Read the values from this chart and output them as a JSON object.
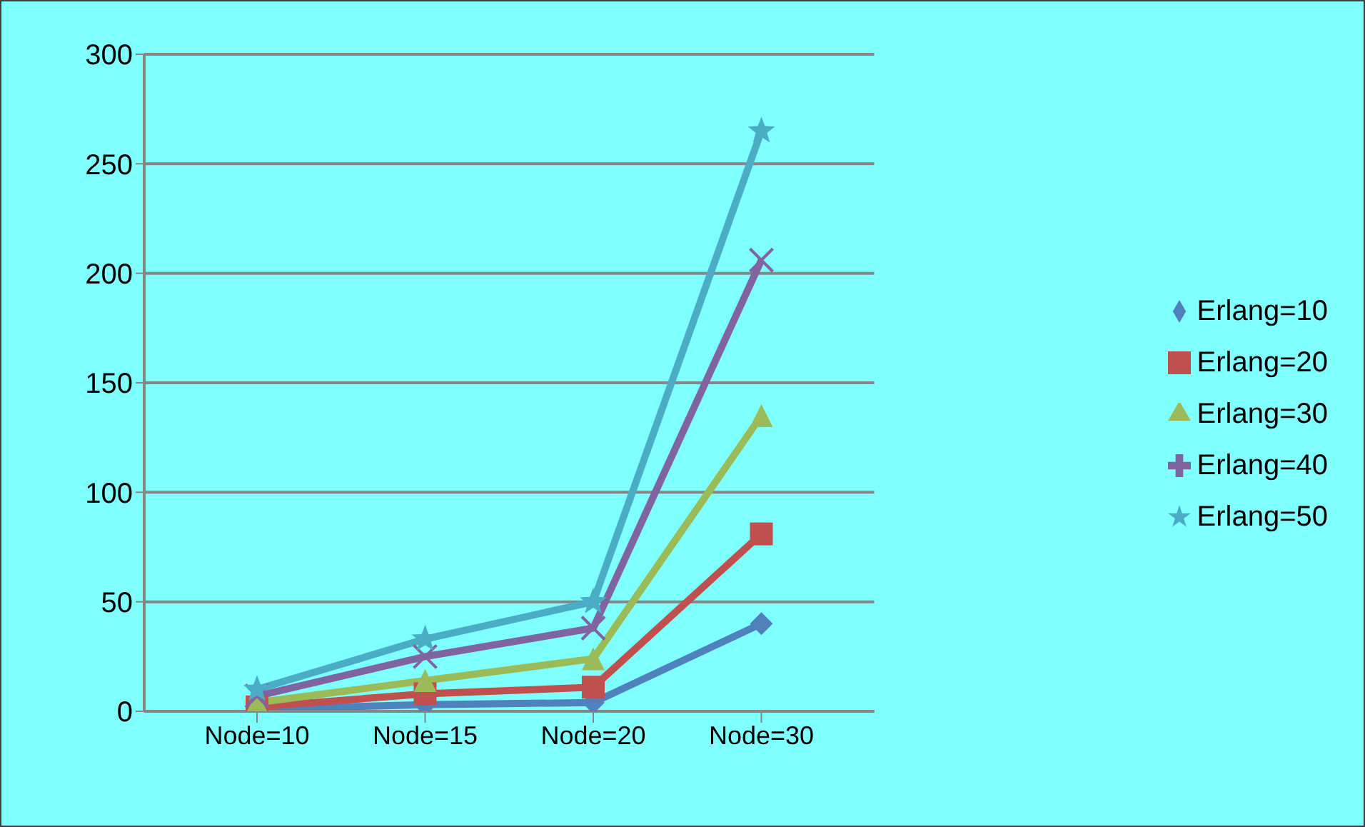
{
  "chart_data": {
    "type": "line",
    "categories": [
      "Node=10",
      "Node=15",
      "Node=20",
      "Node=30"
    ],
    "ylim": [
      0,
      300
    ],
    "yticks": [
      0,
      50,
      100,
      150,
      200,
      250,
      300
    ],
    "grid": "y",
    "legend": "right",
    "series": [
      {
        "name": "Erlang=10",
        "color": "#4f81bd",
        "marker": "diamond",
        "values": [
          1,
          3,
          4,
          40
        ]
      },
      {
        "name": "Erlang=20",
        "color": "#c0504d",
        "marker": "square",
        "values": [
          2,
          8,
          11,
          81
        ]
      },
      {
        "name": "Erlang=30",
        "color": "#9bbb59",
        "marker": "triangle",
        "values": [
          4,
          14,
          24,
          135
        ]
      },
      {
        "name": "Erlang=40",
        "color": "#8064a2",
        "marker": "cross",
        "values": [
          7,
          25,
          38,
          206
        ]
      },
      {
        "name": "Erlang=50",
        "color": "#4bacc6",
        "marker": "star",
        "values": [
          10,
          33,
          50,
          265
        ]
      }
    ]
  }
}
